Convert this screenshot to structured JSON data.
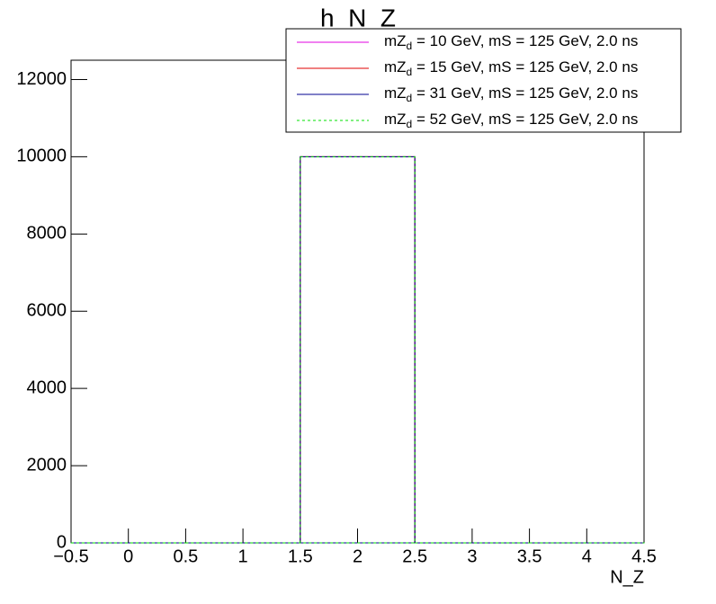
{
  "chart_data": {
    "type": "histogram",
    "title": "h_N_Z",
    "x_label": "N_Z",
    "bins": [
      -0.5,
      0.5,
      1.5,
      2.5,
      3.5,
      4.5
    ],
    "series": [
      {
        "name": "mZd = 10 GeV, mS = 125 GeV, 2.0 ns",
        "color": "#e000e0",
        "style": "solid",
        "values": [
          0,
          0,
          10000,
          0,
          0
        ]
      },
      {
        "name": "mZd = 15 GeV, mS = 125 GeV, 2.0 ns",
        "color": "#e00000",
        "style": "solid",
        "values": [
          0,
          0,
          10000,
          0,
          0
        ]
      },
      {
        "name": "mZd = 31 GeV, mS = 125 GeV, 2.0 ns",
        "color": "#000090",
        "style": "solid",
        "values": [
          0,
          0,
          10000,
          0,
          0
        ]
      },
      {
        "name": "mZd = 52 GeV, mS = 125 GeV, 2.0 ns",
        "color": "#00e000",
        "style": "dashed",
        "values": [
          0,
          0,
          10000,
          0,
          0
        ]
      }
    ],
    "xlim": [
      -0.5,
      4.5
    ],
    "xticks": [
      {
        "value": -0.5,
        "label": "−0.5"
      },
      0,
      0.5,
      1,
      1.5,
      2,
      2.5,
      3,
      3.5,
      4,
      4.5
    ],
    "ylim": [
      0,
      12500
    ],
    "yticks": [
      0,
      2000,
      4000,
      6000,
      8000,
      10000,
      12000
    ],
    "legend": "top-right",
    "grid": false
  }
}
